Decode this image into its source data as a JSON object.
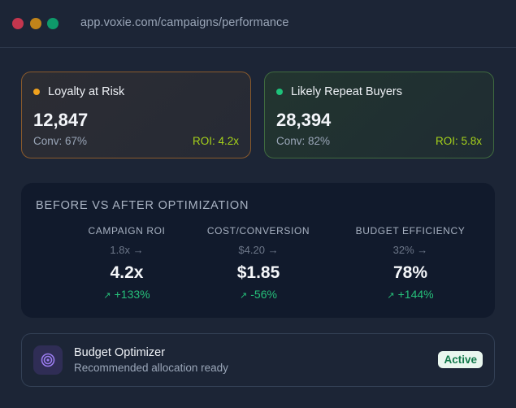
{
  "browser": {
    "url": "app.voxie.com/campaigns/performance"
  },
  "segments": [
    {
      "title": "Loyalty at Risk",
      "value": "12,847",
      "conv": "Conv: 67%",
      "roi": "ROI: 4.2x",
      "dot_color": "#f0a21e"
    },
    {
      "title": "Likely Repeat Buyers",
      "value": "28,394",
      "conv": "Conv: 82%",
      "roi": "ROI: 5.8x",
      "dot_color": "#1ec27a"
    }
  ],
  "comparison": {
    "title": "BEFORE VS AFTER OPTIMIZATION",
    "metrics": [
      {
        "label": "CAMPAIGN ROI",
        "before": "1.8x →",
        "after": "4.2x",
        "arrow": "↗",
        "change": "+133%"
      },
      {
        "label": "COST/CONVERSION",
        "before": "$4.20 →",
        "after": "$1.85",
        "arrow": "↗",
        "change": "-56%"
      },
      {
        "label": "BUDGET EFFICIENCY",
        "before": "32% →",
        "after": "78%",
        "arrow": "↗",
        "change": "+144%"
      }
    ]
  },
  "optimizer": {
    "title": "Budget Optimizer",
    "subtitle": "Recommended allocation ready",
    "status": "Active",
    "icon": "target-icon"
  },
  "colors": {
    "accent_positive": "#26c07a",
    "roi": "#a6d21a",
    "background": "#1c2536"
  }
}
